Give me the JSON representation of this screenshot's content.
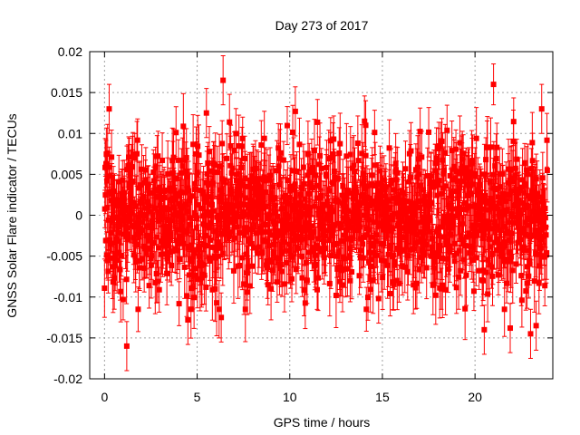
{
  "chart_data": {
    "type": "scatter",
    "title": "Day 273 of 2017",
    "xlabel": "GPS time / hours",
    "ylabel": "GNSS Solar Flare indicator / TECUs",
    "xlim": [
      -0.8,
      24.2
    ],
    "ylim": [
      -0.02,
      0.02
    ],
    "x_ticks": [
      0,
      5,
      10,
      15,
      20
    ],
    "x_tick_labels": [
      "0",
      "5",
      "10",
      "15",
      "20"
    ],
    "y_ticks": [
      -0.02,
      -0.015,
      -0.01,
      -0.005,
      0,
      0.005,
      0.01,
      0.015,
      0.02
    ],
    "y_tick_labels": [
      "-0.02",
      "-0.015",
      "-0.01",
      "-0.005",
      "0",
      "0.005",
      "0.01",
      "0.015",
      "0.02"
    ],
    "grid": true,
    "series": [
      {
        "marker": "square",
        "color": "#ff0000",
        "error_bars": true,
        "x_range": [
          0,
          23.9
        ],
        "spread": 0.0045,
        "typical_error": 0.003,
        "points": [
          {
            "x": 6.4,
            "y": 0.0165,
            "err": 0.003
          },
          {
            "x": 21.0,
            "y": 0.016,
            "err": 0.0025
          },
          {
            "x": 0.25,
            "y": 0.013,
            "err": 0.003
          },
          {
            "x": 10.3,
            "y": 0.0127,
            "err": 0.003
          },
          {
            "x": 5.5,
            "y": 0.0125,
            "err": 0.003
          },
          {
            "x": 23.6,
            "y": 0.013,
            "err": 0.003
          },
          {
            "x": 14.1,
            "y": 0.011,
            "err": 0.003
          },
          {
            "x": 1.2,
            "y": -0.016,
            "err": 0.003
          },
          {
            "x": 20.5,
            "y": -0.014,
            "err": 0.003
          },
          {
            "x": 23.0,
            "y": -0.0145,
            "err": 0.003
          },
          {
            "x": 21.9,
            "y": -0.0138,
            "err": 0.003
          },
          {
            "x": 4.5,
            "y": -0.0128,
            "err": 0.003
          },
          {
            "x": 6.3,
            "y": -0.0125,
            "err": 0.003
          },
          {
            "x": 23.3,
            "y": -0.0135,
            "err": 0.003
          }
        ]
      }
    ]
  }
}
